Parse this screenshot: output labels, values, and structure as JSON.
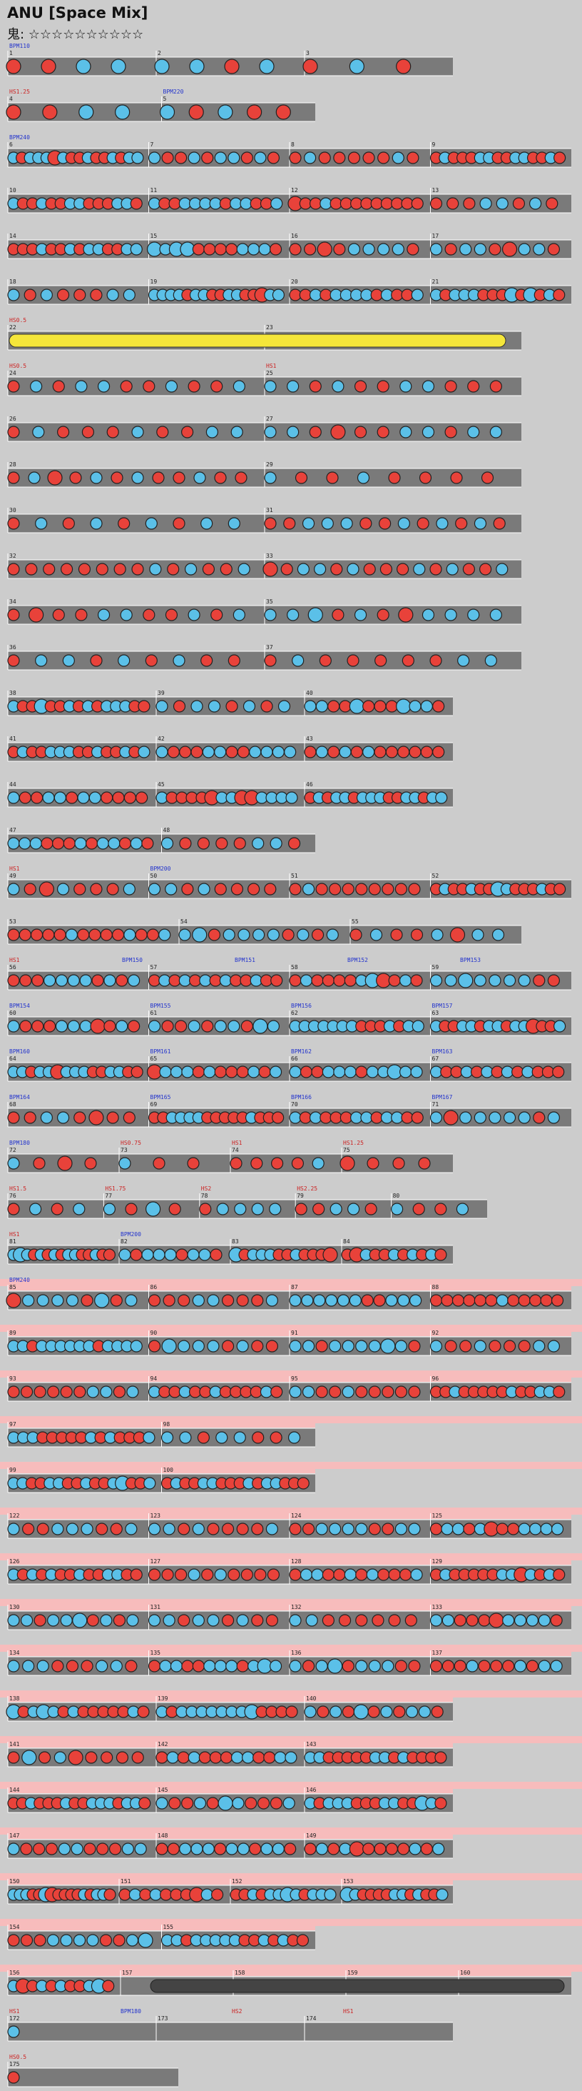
{
  "header": {
    "title": "ANU [Space Mix]",
    "difficulty": "鬼: ☆☆☆☆☆☆☆☆☆☆"
  },
  "rows": [
    {
      "measures": [
        "1",
        "2",
        "3"
      ],
      "labels": [
        "BPM110"
      ]
    },
    {
      "measures": [
        "4",
        "5"
      ],
      "labels": [
        "HS1.25",
        "BPM220"
      ]
    },
    {
      "measures": [
        "6",
        "7",
        "8",
        "9"
      ],
      "labels": [
        "BPM240"
      ]
    },
    {
      "measures": [
        "10",
        "11",
        "12",
        "13"
      ],
      "labels": []
    },
    {
      "measures": [
        "14",
        "15",
        "16",
        "17"
      ],
      "labels": []
    },
    {
      "measures": [
        "18",
        "19",
        "20",
        "21"
      ],
      "labels": []
    },
    {
      "measures": [
        "22",
        "23"
      ],
      "labels": [
        "HS0.5"
      ]
    },
    {
      "measures": [
        "24",
        "25"
      ],
      "labels": [
        "HS0.5",
        "HS1"
      ]
    },
    {
      "measures": [
        "26",
        "27"
      ],
      "labels": []
    },
    {
      "measures": [
        "28",
        "29"
      ],
      "labels": []
    },
    {
      "measures": [
        "30",
        "31"
      ],
      "labels": []
    },
    {
      "measures": [
        "32",
        "33"
      ],
      "labels": []
    },
    {
      "measures": [
        "34",
        "35"
      ],
      "labels": []
    },
    {
      "measures": [
        "36",
        "37"
      ],
      "labels": []
    },
    {
      "measures": [
        "38",
        "39",
        "40"
      ],
      "labels": []
    },
    {
      "measures": [
        "41",
        "42",
        "43"
      ],
      "labels": []
    },
    {
      "measures": [
        "44",
        "45",
        "46"
      ],
      "labels": []
    },
    {
      "measures": [
        "47",
        "48"
      ],
      "labels": []
    },
    {
      "measures": [
        "49",
        "50",
        "51",
        "52"
      ],
      "labels": [
        "HS1",
        "BPM200"
      ]
    },
    {
      "measures": [
        "53",
        "54",
        "55"
      ],
      "labels": []
    },
    {
      "measures": [
        "56",
        "57",
        "58",
        "59"
      ],
      "labels": [
        "HS1",
        "BPM150",
        "BPM151",
        "BPM152",
        "BPM153"
      ]
    },
    {
      "measures": [
        "60",
        "61",
        "62",
        "63"
      ],
      "labels": [
        "BPM154",
        "BPM155",
        "BPM156",
        "BPM157"
      ]
    },
    {
      "measures": [
        "64",
        "65",
        "66",
        "67"
      ],
      "labels": [
        "BPM160",
        "BPM161",
        "BPM162",
        "BPM163"
      ]
    },
    {
      "measures": [
        "68",
        "69",
        "70",
        "71"
      ],
      "labels": [
        "BPM164",
        "BPM165",
        "BPM166",
        "BPM167"
      ]
    },
    {
      "measures": [
        "72",
        "73",
        "74",
        "75"
      ],
      "labels": [
        "BPM180",
        "HS0.75",
        "HS1",
        "HS1.25"
      ]
    },
    {
      "measures": [
        "76",
        "77",
        "78",
        "79",
        "80"
      ],
      "labels": [
        "HS1.5",
        "HS1.75",
        "HS2",
        "HS2.25"
      ]
    },
    {
      "measures": [
        "81",
        "82",
        "83",
        "84"
      ],
      "labels": [
        "HS1",
        "BPM200"
      ]
    },
    {
      "measures": [
        "85",
        "86",
        "87",
        "88"
      ],
      "labels": [
        "BPM240"
      ]
    },
    {
      "measures": [
        "89",
        "90",
        "91",
        "92"
      ],
      "labels": []
    },
    {
      "measures": [
        "93",
        "94",
        "95",
        "96"
      ],
      "labels": []
    },
    {
      "measures": [
        "97",
        "98"
      ],
      "labels": []
    },
    {
      "measures": [
        "99",
        "100"
      ],
      "labels": []
    },
    {
      "measures": [
        "122",
        "123",
        "124",
        "125"
      ],
      "labels": []
    },
    {
      "measures": [
        "126",
        "127",
        "128",
        "129"
      ],
      "labels": []
    },
    {
      "measures": [
        "130",
        "131",
        "132",
        "133"
      ],
      "labels": []
    },
    {
      "measures": [
        "134",
        "135",
        "136",
        "137"
      ],
      "labels": []
    },
    {
      "measures": [
        "138",
        "139",
        "140"
      ],
      "labels": []
    },
    {
      "measures": [
        "141",
        "142",
        "143"
      ],
      "labels": []
    },
    {
      "measures": [
        "144",
        "145",
        "146"
      ],
      "labels": []
    },
    {
      "measures": [
        "147",
        "148",
        "149"
      ],
      "labels": []
    },
    {
      "measures": [
        "150",
        "151",
        "152",
        "153"
      ],
      "labels": []
    },
    {
      "measures": [
        "154",
        "155"
      ],
      "labels": []
    },
    {
      "measures": [
        "156",
        "157",
        "158",
        "159",
        "160"
      ],
      "labels": []
    },
    {
      "measures": [
        "172",
        "173",
        "174"
      ],
      "labels": [
        "HS1",
        "BPM180",
        "HS2",
        "HS1"
      ]
    },
    {
      "measures": [
        "175"
      ],
      "labels": [
        "HS0.5"
      ]
    }
  ]
}
